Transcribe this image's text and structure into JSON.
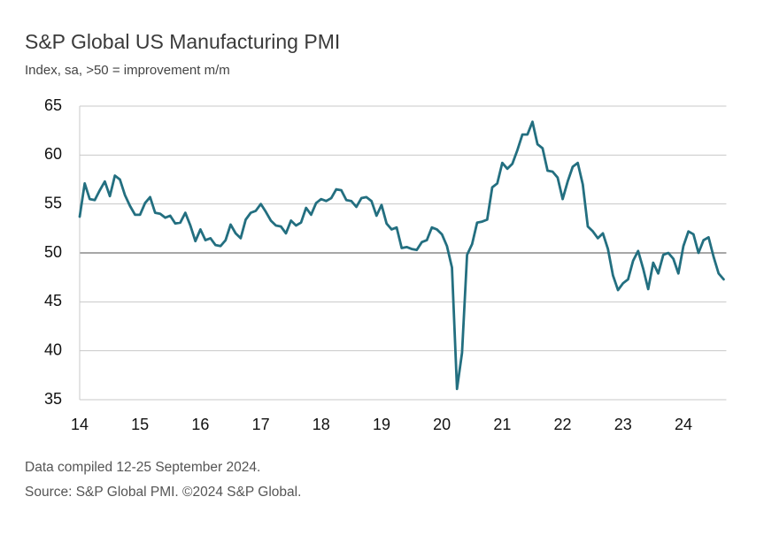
{
  "chart_data": {
    "type": "line",
    "title": "S&P Global US Manufacturing PMI",
    "subtitle": "Index, sa, >50 = improvement m/m",
    "notes": [
      "Data compiled 12-25 September 2024.",
      "Source: S&P Global PMI. ©2024 S&P Global."
    ],
    "categories": [
      "14",
      null,
      null,
      null,
      null,
      null,
      null,
      null,
      null,
      null,
      null,
      null,
      "15",
      null,
      null,
      null,
      null,
      null,
      null,
      null,
      null,
      null,
      null,
      null,
      "16",
      null,
      null,
      null,
      null,
      null,
      null,
      null,
      null,
      null,
      null,
      null,
      "17",
      null,
      null,
      null,
      null,
      null,
      null,
      null,
      null,
      null,
      null,
      null,
      "18",
      null,
      null,
      null,
      null,
      null,
      null,
      null,
      null,
      null,
      null,
      null,
      "19",
      null,
      null,
      null,
      null,
      null,
      null,
      null,
      null,
      null,
      null,
      null,
      "20",
      null,
      null,
      null,
      null,
      null,
      null,
      null,
      null,
      null,
      null,
      null,
      "21",
      null,
      null,
      null,
      null,
      null,
      null,
      null,
      null,
      null,
      null,
      null,
      "22",
      null,
      null,
      null,
      null,
      null,
      null,
      null,
      null,
      null,
      null,
      null,
      "23",
      null,
      null,
      null,
      null,
      null,
      null,
      null,
      null,
      null,
      null,
      null,
      "24",
      null,
      null,
      null,
      null,
      null,
      null,
      null,
      null
    ],
    "values": [
      53.7,
      57.1,
      55.5,
      55.4,
      56.4,
      57.3,
      55.8,
      57.9,
      57.5,
      55.9,
      54.8,
      53.9,
      53.9,
      55.1,
      55.7,
      54.1,
      54.0,
      53.6,
      53.8,
      53.0,
      53.1,
      54.1,
      52.8,
      51.2,
      52.4,
      51.3,
      51.5,
      50.8,
      50.7,
      51.3,
      52.9,
      52.0,
      51.5,
      53.4,
      54.1,
      54.3,
      55.0,
      54.2,
      53.3,
      52.8,
      52.7,
      52.0,
      53.3,
      52.8,
      53.1,
      54.6,
      53.9,
      55.1,
      55.5,
      55.3,
      55.6,
      56.5,
      56.4,
      55.4,
      55.3,
      54.7,
      55.6,
      55.7,
      55.3,
      53.8,
      54.9,
      53.0,
      52.4,
      52.6,
      50.5,
      50.6,
      50.4,
      50.3,
      51.1,
      51.3,
      52.6,
      52.4,
      51.9,
      50.7,
      48.5,
      36.1,
      39.8,
      49.8,
      50.9,
      53.1,
      53.2,
      53.4,
      56.7,
      57.1,
      59.2,
      58.6,
      59.1,
      60.5,
      62.1,
      62.1,
      63.4,
      61.1,
      60.7,
      58.4,
      58.3,
      57.7,
      55.5,
      57.3,
      58.8,
      59.2,
      57.0,
      52.7,
      52.2,
      51.5,
      52.0,
      50.4,
      47.7,
      46.2,
      46.9,
      47.3,
      49.2,
      50.2,
      48.4,
      46.3,
      49.0,
      47.9,
      49.8,
      50.0,
      49.4,
      47.9,
      50.7,
      52.2,
      51.9,
      50.0,
      51.3,
      51.6,
      49.6,
      47.9,
      47.3
    ],
    "color": "#236f80",
    "ylim": [
      35,
      65
    ],
    "yticks": [
      35,
      40,
      45,
      50,
      55,
      60,
      65
    ],
    "grid": true,
    "reference_line": 50
  }
}
